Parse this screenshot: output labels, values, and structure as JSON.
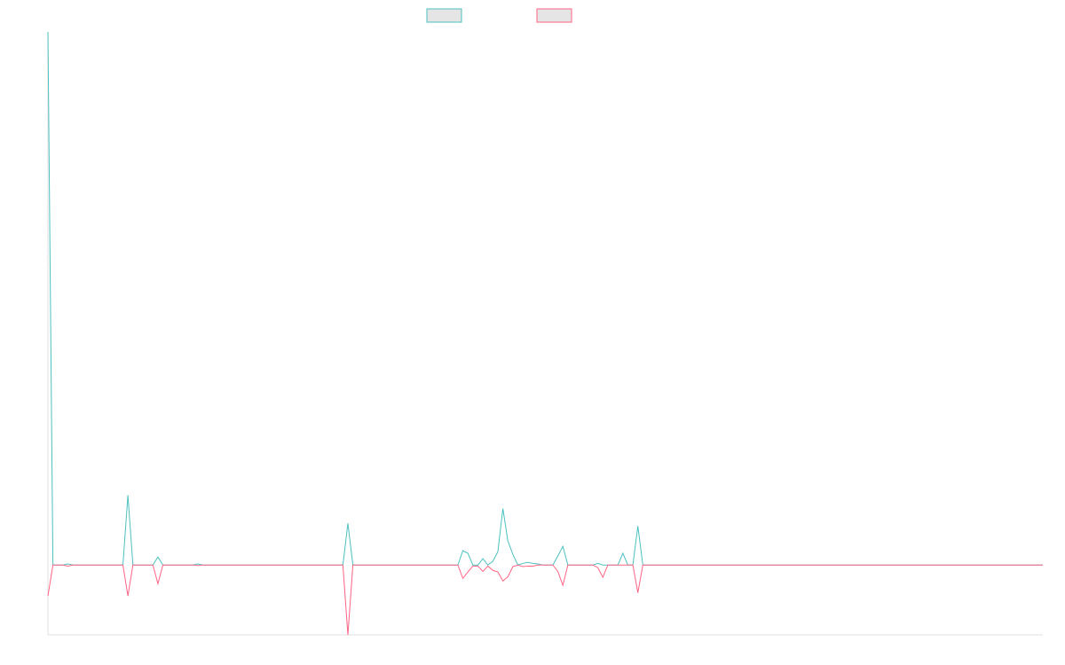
{
  "chart_data": {
    "type": "line",
    "title": "",
    "xlabel": "",
    "ylabel": "",
    "x_count": 200,
    "ylim": [
      -13.1,
      100
    ],
    "grid": false,
    "legend_position": "top",
    "series": [
      {
        "color": "#4bc0c0",
        "points": {
          "0": 100,
          "4": 0.2,
          "16": 13.1,
          "22": 1.5,
          "30": 0.2,
          "60": 7.8,
          "83": 2.7,
          "84": 2.2,
          "87": 1.2,
          "89": 0.7,
          "90": 2.5,
          "91": 10.6,
          "92": 4.5,
          "93": 2.0,
          "95": 0.3,
          "96": 0.5,
          "97": 0.3,
          "98": 0.2,
          "102": 1.7,
          "103": 3.5,
          "110": 0.3,
          "115": 2.2,
          "118": 7.3
        }
      },
      {
        "color": "#ff6384",
        "points": {
          "0": -5.8,
          "4": -0.2,
          "16": -5.8,
          "22": -3.5,
          "30": -0.1,
          "60": -13.1,
          "83": -2.5,
          "84": -1.3,
          "85": -0.2,
          "86": -0.2,
          "87": -1.2,
          "88": -0.2,
          "89": -1.0,
          "90": -1.3,
          "91": -3.0,
          "92": -2.2,
          "93": -0.3,
          "95": -0.3,
          "96": -0.2,
          "97": -0.2,
          "102": -1.2,
          "103": -3.8,
          "110": -0.5,
          "111": -2.3,
          "118": -5.2
        }
      }
    ],
    "legend_fill": "#e5e5e5",
    "axis_color": "#e0e0e0"
  }
}
